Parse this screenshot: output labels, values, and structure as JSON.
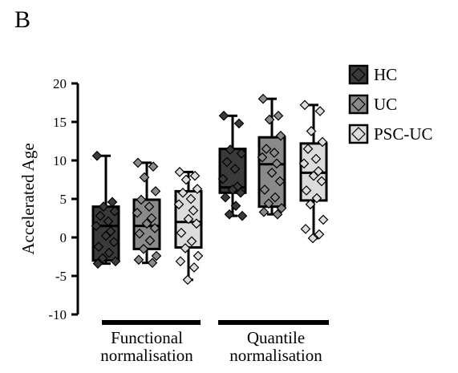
{
  "panel_label": "B",
  "chart_data": {
    "type": "box",
    "ylabel": "Accelerated Age",
    "ylim": [
      -10,
      20
    ],
    "yticks": [
      -10,
      -5,
      0,
      5,
      10,
      15,
      20
    ],
    "grid": false,
    "legend_position": "right",
    "groups": [
      {
        "label_lines": [
          "Functional",
          "normalisation"
        ]
      },
      {
        "label_lines": [
          "Quantile",
          "normalisation"
        ]
      }
    ],
    "series": [
      {
        "name": "HC",
        "color": "#3a3a3a"
      },
      {
        "name": "UC",
        "color": "#8a8a8a"
      },
      {
        "name": "PSC-UC",
        "color": "#dcdcdc"
      }
    ],
    "boxes": [
      {
        "group": 0,
        "series": 0,
        "min": -3.4,
        "q1": -3.0,
        "median": 1.5,
        "q3": 4.0,
        "max": 10.6,
        "points": [
          10.6,
          4.6,
          4.0,
          3.4,
          2.8,
          2.1,
          1.5,
          0.8,
          0.2,
          -0.6,
          -1.2,
          -2.0,
          -2.7,
          -3.1,
          -3.4
        ]
      },
      {
        "group": 0,
        "series": 1,
        "min": -3.3,
        "q1": -1.5,
        "median": 1.5,
        "q3": 4.9,
        "max": 9.7,
        "points": [
          9.7,
          9.2,
          7.8,
          6.0,
          4.9,
          4.0,
          3.2,
          2.5,
          1.8,
          1.2,
          0.5,
          -0.4,
          -1.5,
          -2.4,
          -2.9,
          -3.3
        ]
      },
      {
        "group": 0,
        "series": 2,
        "min": -5.5,
        "q1": -1.3,
        "median": 2.0,
        "q3": 6.0,
        "max": 8.5,
        "points": [
          8.5,
          8.0,
          7.5,
          6.3,
          5.8,
          5.0,
          4.3,
          3.5,
          2.4,
          1.8,
          0.6,
          -0.5,
          -1.4,
          -2.4,
          -3.1,
          -3.9,
          -5.5
        ]
      },
      {
        "group": 1,
        "series": 0,
        "min": 2.8,
        "q1": 5.8,
        "median": 6.5,
        "q3": 11.5,
        "max": 15.8,
        "points": [
          15.8,
          14.8,
          11.4,
          10.9,
          9.8,
          8.9,
          7.6,
          6.6,
          6.2,
          5.8,
          5.2,
          4.1,
          3.0,
          2.8
        ]
      },
      {
        "group": 1,
        "series": 1,
        "min": 3.0,
        "q1": 4.0,
        "median": 9.5,
        "q3": 13.0,
        "max": 18.0,
        "points": [
          18.0,
          15.8,
          15.3,
          13.2,
          11.5,
          11.0,
          10.4,
          9.6,
          8.4,
          7.3,
          6.2,
          5.2,
          4.4,
          3.8,
          3.3,
          3.0
        ]
      },
      {
        "group": 1,
        "series": 2,
        "min": -0.1,
        "q1": 4.8,
        "median": 8.4,
        "q3": 12.2,
        "max": 17.2,
        "points": [
          17.2,
          16.4,
          13.8,
          12.4,
          11.5,
          10.2,
          9.6,
          8.6,
          8.0,
          7.3,
          6.1,
          5.1,
          4.3,
          2.3,
          1.1,
          0.4,
          -0.1
        ]
      }
    ]
  }
}
